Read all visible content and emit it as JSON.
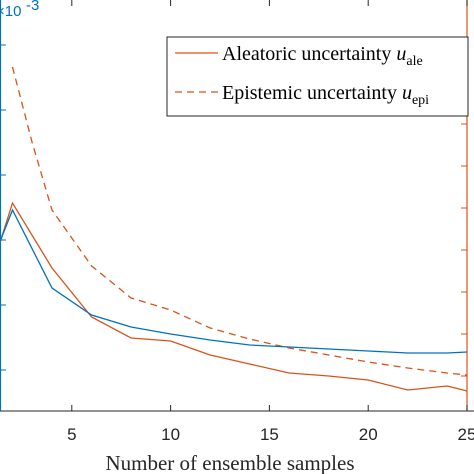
{
  "chart_data": {
    "type": "line",
    "xlabel": "Number of ensemble samples",
    "xlim": [
      0,
      25
    ],
    "xticks": [
      5,
      10,
      15,
      20,
      25
    ],
    "y_left_exponent_label": "×10",
    "y_left_exponent_power": "-3",
    "y_left_color": "#0072BD",
    "y_right_color": "#D95319",
    "legend": {
      "location": "top-right"
    },
    "grid": false,
    "series": [
      {
        "name": "Aleatoric uncertainty u",
        "name_subscript": "ale",
        "axis": "right",
        "style": "solid",
        "color": "#D95319",
        "x": [
          0,
          1,
          2,
          4,
          6,
          8,
          10,
          12,
          14,
          16,
          18,
          20,
          22,
          24,
          25
        ],
        "y": [
          220,
          265,
          203,
          268,
          317,
          338,
          341,
          355,
          364,
          373,
          376,
          380,
          390,
          386,
          391
        ]
      },
      {
        "name": "Epistemic uncertainty u",
        "name_subscript": "epi",
        "axis": "right",
        "style": "dashed",
        "color": "#D95319",
        "x": [
          2,
          3,
          4,
          6,
          8,
          10,
          12,
          14,
          16,
          18,
          20,
          22,
          24,
          25
        ],
        "y": [
          67,
          143,
          210,
          266,
          298,
          310,
          328,
          339,
          348,
          355,
          362,
          368,
          373,
          375
        ]
      },
      {
        "name": "",
        "axis": "left",
        "style": "solid",
        "color": "#0072BD",
        "x": [
          0,
          1,
          2,
          4,
          6,
          8,
          10,
          12,
          14,
          16,
          18,
          20,
          22,
          24,
          25
        ],
        "y": [
          220,
          260,
          210,
          288,
          315,
          327,
          334,
          340,
          345,
          347,
          349,
          351,
          353,
          353,
          352
        ]
      }
    ]
  }
}
